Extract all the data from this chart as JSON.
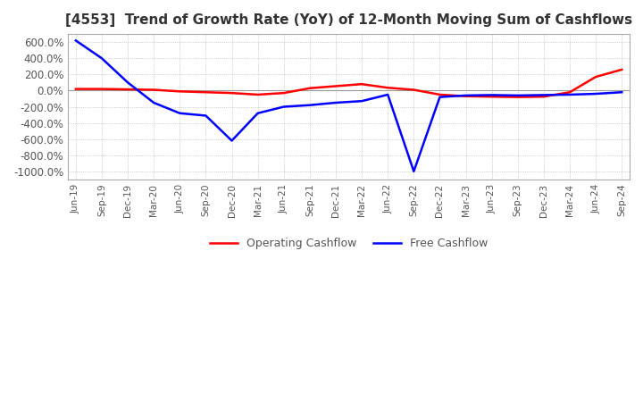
{
  "title": "[4553]  Trend of Growth Rate (YoY) of 12-Month Moving Sum of Cashflows",
  "title_fontsize": 11,
  "ylim": [
    -1100,
    700
  ],
  "yticks": [
    600,
    400,
    200,
    0,
    -200,
    -400,
    -600,
    -800,
    -1000
  ],
  "background_color": "#ffffff",
  "grid_color": "#aaaaaa",
  "operating_color": "#ff0000",
  "free_color": "#0000ff",
  "x_labels": [
    "Jun-19",
    "Sep-19",
    "Dec-19",
    "Mar-20",
    "Jun-20",
    "Sep-20",
    "Dec-20",
    "Mar-21",
    "Jun-21",
    "Sep-21",
    "Dec-21",
    "Mar-22",
    "Jun-22",
    "Sep-22",
    "Dec-22",
    "Mar-23",
    "Jun-23",
    "Sep-23",
    "Dec-23",
    "Mar-24",
    "Jun-24",
    "Sep-24"
  ],
  "operating_cashflow": [
    20,
    20,
    15,
    10,
    -10,
    -20,
    -30,
    -50,
    -30,
    30,
    55,
    80,
    35,
    10,
    -50,
    -70,
    -75,
    -80,
    -75,
    -20,
    170,
    260
  ],
  "free_cashflow": [
    620,
    400,
    100,
    -150,
    -280,
    -310,
    -620,
    -280,
    -200,
    -180,
    -150,
    -130,
    -50,
    -1000,
    -80,
    -60,
    -55,
    -60,
    -55,
    -50,
    -40,
    -20
  ]
}
